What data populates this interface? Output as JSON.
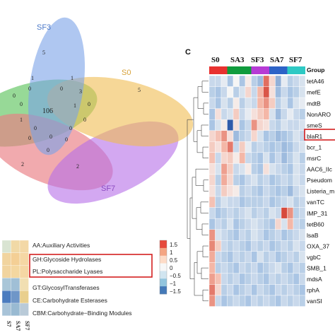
{
  "venn": {
    "labels": {
      "sf3": "SF3",
      "s0": "S0",
      "sf7": "SF7"
    },
    "colors": {
      "sf3": "#7aa2e8",
      "s0": "#f0bd52",
      "sf7": "#b56ee8",
      "green": "#5fc45f",
      "pink": "#ea7c82"
    },
    "region_counts": [
      {
        "id": "sf3-only",
        "value": "5"
      },
      {
        "id": "s0-only",
        "value": "5"
      },
      {
        "id": "center",
        "value": "106"
      },
      {
        "id": "pink-only",
        "value": "2"
      },
      {
        "id": "sf7-only",
        "value": "2"
      },
      {
        "id": "r-a",
        "value": "1"
      },
      {
        "id": "r-b",
        "value": "1"
      },
      {
        "id": "r-c",
        "value": "0"
      },
      {
        "id": "r-d",
        "value": "0"
      },
      {
        "id": "r-e",
        "value": "3"
      },
      {
        "id": "r-f",
        "value": "0"
      },
      {
        "id": "r-g",
        "value": "0"
      },
      {
        "id": "r-h",
        "value": "1"
      },
      {
        "id": "r-i",
        "value": "0"
      },
      {
        "id": "r-j",
        "value": "0"
      },
      {
        "id": "r-k",
        "value": "0"
      },
      {
        "id": "r-l",
        "value": "0"
      },
      {
        "id": "r-m",
        "value": "0"
      },
      {
        "id": "r-n",
        "value": "0"
      },
      {
        "id": "r-o",
        "value": "0"
      },
      {
        "id": "r-p",
        "value": "1"
      },
      {
        "id": "r-q",
        "value": "0"
      }
    ]
  },
  "cazy": {
    "categories": [
      "AA:Auxiliary Activities",
      "GH:Glycoside Hydrolases",
      "PL:Polysaccharide Lyases",
      "GT:GlycosylTransferases",
      "CE:Carbohydrate Esterases",
      "CBM:Carbohydrate−Binding Modules"
    ],
    "highlighted": [
      "GH:Glycoside Hydrolases",
      "PL:Polysaccharide Lyases"
    ],
    "columns": [
      "S7",
      "SA7",
      "SF7"
    ],
    "cells": [
      [
        "#d9e4d2",
        "#f1d9a6",
        "#f3d8a6"
      ],
      [
        "#f1d49f",
        "#f4cf95",
        "#f5d7a4"
      ],
      [
        "#f1d49f",
        "#f4d7a0",
        "#f5d7a4"
      ],
      [
        "#a9c6d8",
        "#a0bfd6",
        "#f1dfb2"
      ],
      [
        "#4b7cbf",
        "#6f96c8",
        "#e9cf8d"
      ],
      [
        "#a8c3d8",
        "#99bad2",
        "#b9cad8"
      ]
    ],
    "legend_ticks": [
      "1.5",
      "1",
      "0.5",
      "0",
      "−0.5",
      "−1",
      "−1.5"
    ],
    "legend_colors": [
      "#e64a3c",
      "#f4a583",
      "#fddbc7",
      "#f7f7f7",
      "#d1e5f0",
      "#92c5de",
      "#4479b8"
    ]
  },
  "heatmap": {
    "panel_letter": "C",
    "groups": [
      "S0",
      "SA3",
      "SF3",
      "SA7",
      "SF7"
    ],
    "group_label": "Group",
    "group_colors": [
      "#e8312f",
      "#0f9b3d",
      "#b63bd5",
      "#2d63c7",
      "#2ec9c4"
    ],
    "genes": [
      "tetA46",
      "mefE",
      "mdtB",
      "NonARO",
      "smeS",
      "blaR1",
      "bcr_1",
      "msrC",
      "AAC6_IIc",
      "Pseudom",
      "Listeria_m",
      "vanTC",
      "IMP_31",
      "tetB60",
      "lsaB",
      "OXA_37",
      "vgbC",
      "SMB_1",
      "mdsA",
      "rphA",
      "vanSI"
    ],
    "highlighted_gene": "AAC6_IIc",
    "values": [
      [
        -0.3,
        -0.3,
        -0.1,
        -0.5,
        0,
        -0.5,
        0.1,
        -0.4,
        -0.6,
        1.2,
        0.3,
        -0.7,
        -0.1,
        -0.4,
        -0.3,
        -0.2
      ],
      [
        -0.4,
        -0.5,
        -0.3,
        0,
        -0.4,
        -0.2,
        0.3,
        -0.3,
        0.6,
        1.4,
        0.2,
        -0.6,
        -0.3,
        -0.5,
        -0.4,
        -0.2
      ],
      [
        -0.3,
        -0.5,
        -0.2,
        -0.4,
        0.1,
        -0.4,
        -0.2,
        -0.3,
        0.6,
        0.9,
        0.4,
        -0.4,
        -0.2,
        -0.5,
        -0.2,
        -0.1
      ],
      [
        -0.5,
        0.2,
        -0.3,
        -0.2,
        0.4,
        -0.3,
        -0.1,
        0.2,
        0.4,
        0.6,
        -0.2,
        -0.6,
        -0.3,
        -0.1,
        -0.3,
        -0.4
      ],
      [
        -0.5,
        -0.2,
        0.1,
        -1.5,
        0.2,
        -0.5,
        -0.3,
        0.9,
        0.3,
        0.2,
        -0.3,
        -0.4,
        -0.2,
        -0.3,
        -0.3,
        -0.2
      ],
      [
        0.3,
        0.5,
        0.9,
        0.2,
        -0.6,
        -0.4,
        -0.3,
        0.3,
        -0.2,
        -0.5,
        -0.4,
        -0.6,
        -0.5,
        -0.4,
        -0.2,
        -0.3
      ],
      [
        0.4,
        0.2,
        0.6,
        1.1,
        -0.3,
        0.4,
        -0.1,
        -0.4,
        -0.3,
        -0.4,
        -0.5,
        -0.4,
        -0.6,
        -0.5,
        -0.3,
        -0.2
      ],
      [
        0.5,
        -0.3,
        0.3,
        0.4,
        0.1,
        0.6,
        -0.3,
        -0.4,
        -0.5,
        -0.2,
        -0.5,
        -0.3,
        -0.6,
        -0.4,
        -0.2,
        -0.4
      ],
      [
        0.2,
        -0.2,
        0.8,
        0.4,
        -0.3,
        -0.2,
        0.1,
        -0.4,
        -0.5,
        0.2,
        -0.2,
        -0.3,
        -0.4,
        -0.5,
        -0.2,
        -0.3
      ],
      [
        0.3,
        -0.4,
        0.7,
        0.3,
        -0.4,
        -0.5,
        -0.3,
        -0.2,
        -0.4,
        -0.3,
        -0.5,
        -0.4,
        -0.3,
        -0.4,
        -0.2,
        -0.3
      ],
      [
        0.2,
        -0.3,
        0.4,
        0.2,
        0.1,
        -0.4,
        -0.3,
        -0.4,
        -0.5,
        -0.3,
        -0.4,
        -0.5,
        -0.4,
        -0.6,
        -0.3,
        -0.2
      ],
      [
        0.5,
        -0.4,
        -0.2,
        -0.3,
        -0.3,
        -0.5,
        -0.4,
        -0.4,
        -0.4,
        -0.3,
        -0.5,
        -0.4,
        -0.3,
        -0.2,
        -0.4,
        -0.3
      ],
      [
        -0.3,
        -0.5,
        -0.4,
        -0.3,
        -0.4,
        -0.3,
        -0.2,
        -0.4,
        -0.3,
        -0.4,
        -0.2,
        -0.3,
        1.5,
        0.9,
        -0.4,
        -0.3
      ],
      [
        -0.5,
        -0.3,
        -0.4,
        -0.2,
        -0.5,
        -0.4,
        -0.3,
        -0.2,
        -0.3,
        -0.4,
        -0.5,
        0.3,
        -0.2,
        0.6,
        -0.3,
        -0.4
      ],
      [
        0.9,
        -0.2,
        -0.3,
        -0.4,
        -0.5,
        -0.3,
        -0.4,
        -0.2,
        -0.3,
        -0.5,
        -0.4,
        -0.3,
        -0.5,
        -0.4,
        -0.3,
        -0.2
      ],
      [
        1.0,
        0.4,
        -0.3,
        -0.4,
        -0.3,
        -0.4,
        -0.5,
        -0.3,
        -0.4,
        -0.3,
        -0.5,
        -0.4,
        -0.3,
        -0.4,
        -0.2,
        -0.3
      ],
      [
        0.7,
        -0.3,
        -0.4,
        -0.5,
        -0.3,
        -0.4,
        -0.3,
        -0.5,
        -0.2,
        -0.4,
        -0.3,
        -0.5,
        -0.4,
        -0.3,
        -0.4,
        -0.2
      ],
      [
        0.6,
        -0.4,
        -0.3,
        -0.4,
        -0.5,
        -0.3,
        -0.4,
        -0.3,
        -0.5,
        -0.4,
        -0.3,
        -0.2,
        -0.4,
        -0.5,
        -0.3,
        -0.4
      ],
      [
        0.8,
        0.5,
        -0.3,
        -0.4,
        -0.3,
        -0.5,
        -0.4,
        -0.3,
        -0.4,
        -0.5,
        -0.3,
        -0.4,
        -0.3,
        -0.4,
        -0.5,
        -0.3
      ],
      [
        1.1,
        0.3,
        -0.4,
        -0.3,
        -0.5,
        -0.4,
        -0.3,
        -0.5,
        -0.3,
        -0.4,
        -0.5,
        -0.3,
        -0.4,
        -0.3,
        -0.4,
        -0.5
      ],
      [
        0.9,
        -0.3,
        -0.5,
        -0.4,
        -0.3,
        -0.4,
        -0.5,
        -0.3,
        -0.4,
        -0.3,
        -0.4,
        -0.5,
        -0.3,
        -0.4,
        -0.3,
        -0.4
      ]
    ]
  }
}
